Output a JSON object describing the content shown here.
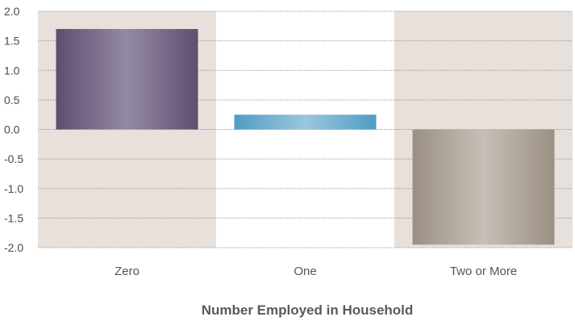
{
  "chart_data": {
    "type": "bar",
    "categories": [
      "Zero",
      "One",
      "Two or More"
    ],
    "values": [
      1.7,
      0.25,
      -1.95
    ],
    "xlabel": "Number Employed in Household",
    "ylabel": "",
    "ylim": [
      -2.0,
      2.0
    ],
    "yticks": [
      "2.0",
      "1.5",
      "1.0",
      "0.5",
      "0.0",
      "-0.5",
      "-1.0",
      "-1.5",
      "-2.0"
    ],
    "grid": true,
    "legend": "none",
    "colors": {
      "bar_zero": "#6b5a7e",
      "bar_one": "#5aa3c6",
      "bar_two": "#a59a8e",
      "band_bg": "#e7e0db",
      "grid": "#9a9a9a"
    }
  }
}
